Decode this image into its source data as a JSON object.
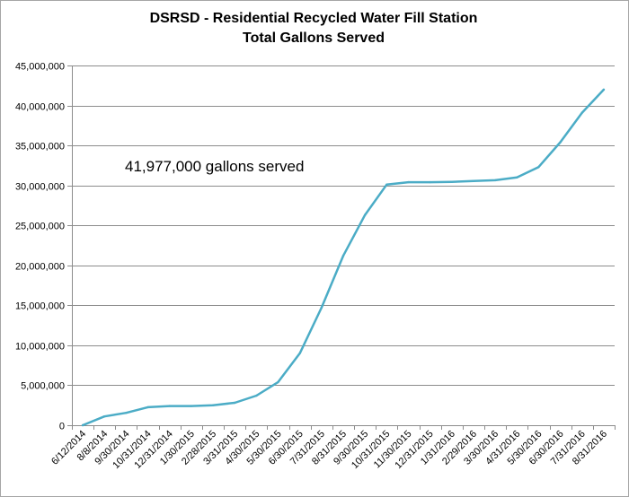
{
  "chart_data": {
    "type": "line",
    "title": "DSRSD - Residential Recycled Water Fill Station",
    "subtitle": "Total Gallons Served",
    "xlabel": "",
    "ylabel": "",
    "ylim": [
      0,
      45000000
    ],
    "yticks": [
      "0",
      "5,000,000",
      "10,000,000",
      "15,000,000",
      "20,000,000",
      "25,000,000",
      "30,000,000",
      "35,000,000",
      "40,000,000",
      "45,000,000"
    ],
    "ytick_values": [
      0,
      5000000,
      10000000,
      15000000,
      20000000,
      25000000,
      30000000,
      35000000,
      40000000,
      45000000
    ],
    "categories": [
      "6/12/2014",
      "8/8/2014",
      "9/30/2014",
      "10/31/2014",
      "12/31/2014",
      "1/30/2015",
      "2/28/2015",
      "3/31/2015",
      "4/30/2015",
      "5/30/2015",
      "6/30/2015",
      "7/31/2015",
      "8/31/2015",
      "9/30/2015",
      "10/31/2015",
      "11/30/2015",
      "12/31/2015",
      "1/31/2016",
      "2/29/2016",
      "3/30/2016",
      "4/31/2016",
      "5/30/2016",
      "6/30/2016",
      "7/31/2016",
      "8/31/2016"
    ],
    "series": [
      {
        "name": "",
        "color": "#4bacc6",
        "values": [
          0,
          1100000,
          1550000,
          2250000,
          2400000,
          2400000,
          2500000,
          2800000,
          3700000,
          5400000,
          9000000,
          14700000,
          21200000,
          26300000,
          30100000,
          30400000,
          30400000,
          30450000,
          30550000,
          30650000,
          31000000,
          32300000,
          35400000,
          39100000,
          41977000
        ]
      }
    ],
    "gridlines": true,
    "legend": "none",
    "annotation": "41,977,000 gallons served"
  }
}
